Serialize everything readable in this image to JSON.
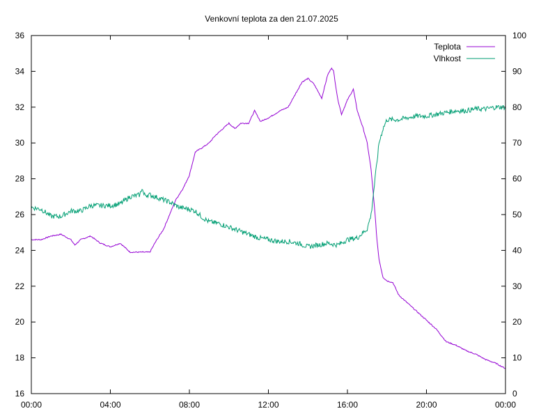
{
  "chart_data": {
    "type": "line",
    "title": "Venkovní teplota za den 21.07.2025",
    "xlabel": "",
    "ylabel": "",
    "y2label": "",
    "x_ticks": [
      "00:00",
      "04:00",
      "08:00",
      "12:00",
      "16:00",
      "20:00",
      "00:00"
    ],
    "x_range_hours": [
      0,
      24
    ],
    "ylim": [
      16,
      36
    ],
    "y_ticks": [
      16,
      18,
      20,
      22,
      24,
      26,
      28,
      30,
      32,
      34,
      36
    ],
    "y2lim": [
      0,
      100
    ],
    "y2_ticks": [
      0,
      10,
      20,
      30,
      40,
      50,
      60,
      70,
      80,
      90,
      100
    ],
    "grid": false,
    "legend_position": "top-right",
    "series": [
      {
        "name": "Teplota",
        "axis": "left",
        "color": "#9400d3",
        "x_hours": [
          0,
          0.5,
          1.0,
          1.5,
          2.0,
          2.2,
          2.5,
          3.0,
          3.5,
          4.0,
          4.5,
          5.0,
          5.5,
          6.0,
          6.3,
          6.7,
          7.0,
          7.3,
          7.7,
          8.0,
          8.3,
          8.6,
          9.0,
          9.3,
          9.7,
          10.0,
          10.3,
          10.6,
          11.0,
          11.3,
          11.6,
          12.0,
          12.3,
          12.6,
          13.0,
          13.3,
          13.7,
          14.0,
          14.3,
          14.7,
          15.0,
          15.2,
          15.3,
          15.5,
          15.7,
          16.0,
          16.3,
          16.5,
          16.8,
          17.0,
          17.2,
          17.4,
          17.5,
          17.6,
          17.8,
          18.0,
          18.3,
          18.6,
          19.0,
          19.5,
          20.0,
          20.5,
          21.0,
          21.5,
          22.0,
          22.5,
          23.0,
          23.5,
          24.0
        ],
        "values": [
          24.6,
          24.6,
          24.8,
          24.9,
          24.6,
          24.3,
          24.6,
          24.8,
          24.4,
          24.2,
          24.4,
          23.9,
          23.9,
          23.9,
          24.5,
          25.2,
          26.0,
          26.8,
          27.5,
          28.2,
          29.5,
          29.7,
          30.0,
          30.4,
          30.8,
          31.1,
          30.8,
          31.1,
          31.1,
          31.8,
          31.2,
          31.4,
          31.6,
          31.8,
          32.0,
          32.6,
          33.4,
          33.6,
          33.3,
          32.5,
          33.8,
          34.2,
          34.0,
          32.5,
          31.6,
          32.4,
          33.0,
          31.8,
          30.8,
          30.0,
          28.5,
          26.0,
          24.5,
          23.5,
          22.5,
          22.3,
          22.2,
          21.5,
          21.1,
          20.6,
          20.1,
          19.6,
          18.9,
          18.7,
          18.4,
          18.2,
          17.9,
          17.7,
          17.4
        ]
      },
      {
        "name": "Vlhkost",
        "axis": "right",
        "color": "#009e73",
        "x_hours": [
          0,
          0.5,
          1.0,
          1.5,
          2.0,
          2.5,
          3.0,
          3.5,
          4.0,
          4.5,
          5.0,
          5.5,
          5.6,
          5.7,
          6.0,
          6.5,
          7.0,
          7.5,
          8.0,
          8.3,
          8.7,
          9.0,
          9.5,
          10.0,
          10.5,
          11.0,
          11.5,
          12.0,
          12.5,
          13.0,
          13.5,
          14.0,
          14.5,
          15.0,
          15.5,
          16.0,
          16.5,
          17.0,
          17.2,
          17.4,
          17.6,
          17.8,
          18.0,
          18.3,
          18.6,
          19.0,
          19.5,
          20.0,
          20.5,
          21.0,
          21.5,
          22.0,
          22.5,
          23.0,
          23.5,
          24.0
        ],
        "values": [
          52.0,
          51.5,
          49.5,
          49.5,
          51.0,
          51.0,
          52.5,
          52.5,
          52.5,
          53.0,
          55.0,
          55.5,
          57.5,
          55.5,
          55.5,
          54.5,
          53.5,
          52.0,
          51.5,
          51.0,
          49.0,
          48.0,
          47.5,
          46.5,
          45.5,
          44.5,
          43.5,
          43.0,
          42.5,
          42.5,
          42.0,
          41.0,
          41.5,
          42.0,
          41.5,
          43.0,
          43.5,
          46.0,
          50.0,
          60.0,
          70.0,
          74.0,
          76.5,
          76.5,
          76.5,
          77.0,
          77.5,
          77.5,
          78.0,
          78.5,
          79.0,
          79.0,
          79.5,
          79.5,
          80.0,
          80.0
        ]
      }
    ]
  }
}
